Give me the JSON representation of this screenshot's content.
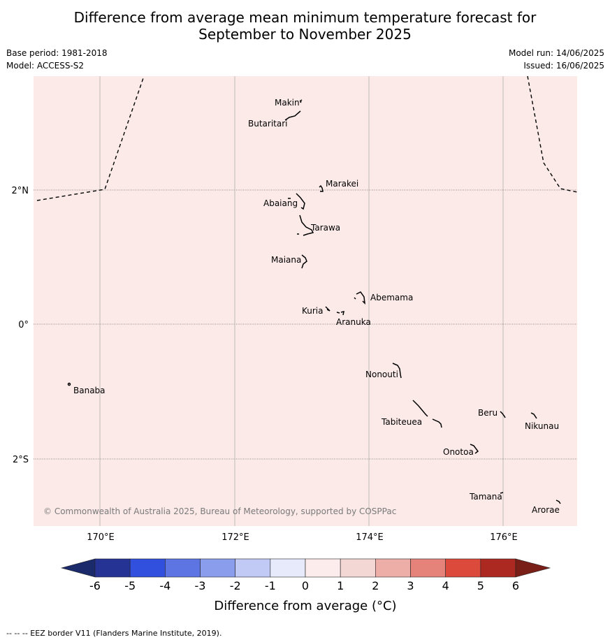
{
  "title": {
    "line1": "Difference from average mean minimum temperature forecast for",
    "line2": "September to November 2025"
  },
  "meta": {
    "base_period": "Base period: 1981-2018",
    "model": "Model: ACCESS-S2",
    "model_run": "Model run: 14/06/2025",
    "issued": "Issued: 16/06/2025"
  },
  "map": {
    "background_color": "#fbeae8",
    "copyright": "© Commonwealth of Australia 2025, Bureau of Meteorology, supported by COSPPac",
    "lat_labels": [
      "2°N",
      "0°",
      "2°S"
    ],
    "lon_labels": [
      "170°E",
      "172°E",
      "174°E",
      "176°E"
    ],
    "places": [
      {
        "name": "Makin",
        "lon": 172.98,
        "lat": 3.37
      },
      {
        "name": "Butaritari",
        "lon": 172.78,
        "lat": 3.16
      },
      {
        "name": "Marakei",
        "lon": 173.28,
        "lat": 2.0
      },
      {
        "name": "Abaiang",
        "lon": 172.93,
        "lat": 1.83
      },
      {
        "name": "Tarawa",
        "lon": 173.02,
        "lat": 1.4
      },
      {
        "name": "Maiana",
        "lon": 172.95,
        "lat": 0.95
      },
      {
        "name": "Abemama",
        "lon": 173.88,
        "lat": 0.4
      },
      {
        "name": "Kuria",
        "lon": 173.4,
        "lat": 0.22
      },
      {
        "name": "Aranuka",
        "lon": 173.6,
        "lat": 0.17
      },
      {
        "name": "Banaba",
        "lon": 169.54,
        "lat": -0.86
      },
      {
        "name": "Nonouti",
        "lon": 174.43,
        "lat": -0.65
      },
      {
        "name": "Beru",
        "lon": 175.98,
        "lat": -1.33
      },
      {
        "name": "Nikunau",
        "lon": 176.45,
        "lat": -1.35
      },
      {
        "name": "Tabiteuea",
        "lon": 174.9,
        "lat": -1.35
      },
      {
        "name": "Onotoa",
        "lon": 175.57,
        "lat": -1.84
      },
      {
        "name": "Tamana",
        "lon": 175.98,
        "lat": -2.5
      },
      {
        "name": "Arorae",
        "lon": 176.82,
        "lat": -2.64
      }
    ]
  },
  "colorbar": {
    "ticks": [
      "-6",
      "-5",
      "-4",
      "-3",
      "-2",
      "-1",
      "0",
      "1",
      "2",
      "3",
      "4",
      "5",
      "6"
    ],
    "colors": [
      "#253494",
      "#3150dd",
      "#5c75e3",
      "#8a9ded",
      "#c1c9f5",
      "#e6eafb",
      "#fdecec",
      "#f2d7d5",
      "#eeaea8",
      "#e5837b",
      "#dc4a3c",
      "#ab2920"
    ],
    "under_color": "#1b2a6b",
    "over_color": "#7a1f18",
    "label": "Difference from average (°C)"
  },
  "footnote": "-- -- -- EEZ border V11 (Flanders Marine Institute, 2019)."
}
